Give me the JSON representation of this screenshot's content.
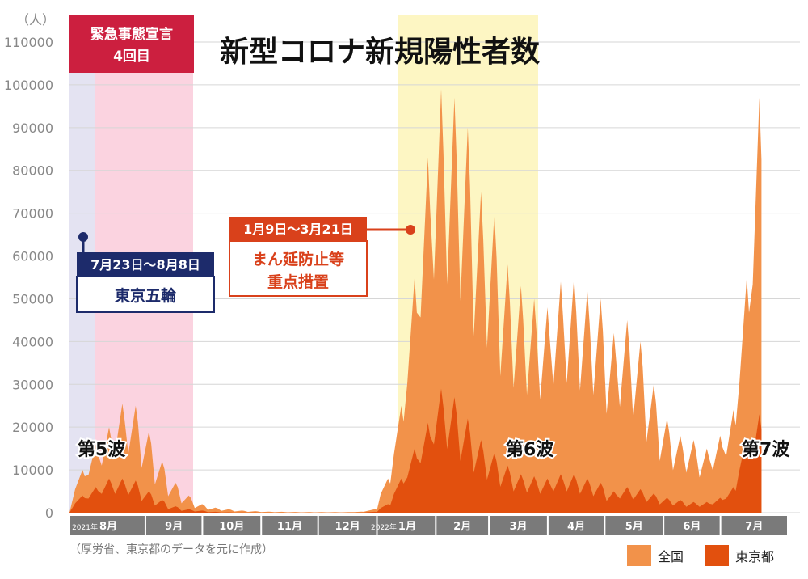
{
  "title": "新型コロナ新規陽性者数",
  "y_unit": "（人）",
  "source": "（厚労省、東京都のデータを元に作成）",
  "annotations": {
    "emergency_line1": "緊急事態宣言",
    "emergency_line2": "4回目",
    "olympics_dates": "7月23日～8月8日",
    "olympics_label": "東京五輪",
    "priority_dates": "1月9日～3月21日",
    "priority_line1": "まん延防止等",
    "priority_line2": "重点措置"
  },
  "waves": {
    "w5": "第5波",
    "w6": "第6波",
    "w7": "第7波"
  },
  "months": [
    {
      "prefix": "2021年",
      "label": "8月"
    },
    {
      "prefix": "",
      "label": "9月"
    },
    {
      "prefix": "",
      "label": "10月"
    },
    {
      "prefix": "",
      "label": "11月"
    },
    {
      "prefix": "",
      "label": "12月"
    },
    {
      "prefix": "2022年",
      "label": "1月"
    },
    {
      "prefix": "",
      "label": "2月"
    },
    {
      "prefix": "",
      "label": "3月"
    },
    {
      "prefix": "",
      "label": "4月"
    },
    {
      "prefix": "",
      "label": "5月"
    },
    {
      "prefix": "",
      "label": "6月"
    },
    {
      "prefix": "",
      "label": "7月"
    }
  ],
  "colors": {
    "national": "#f2924a",
    "tokyo": "#e2500e",
    "emergency_band": "#fbd3e0",
    "emergency_band_pre": "#e4e3f2",
    "priority_band": "#fdf6c3",
    "emergency_box": "#cc1f3f",
    "olympics_box": "#1d2b6b",
    "priority_box": "#d9411b",
    "month_bar": "#7a7a7a"
  },
  "chart_data": {
    "type": "area",
    "title": "新型コロナ新規陽性者数",
    "ylabel": "（人）",
    "ylim": [
      0,
      110000
    ],
    "yticks": [
      0,
      10000,
      20000,
      30000,
      40000,
      50000,
      60000,
      70000,
      80000,
      90000,
      100000,
      110000
    ],
    "grid": true,
    "legend_position": "bottom-right",
    "x_unit": "week",
    "series": [
      {
        "name": "全国",
        "color": "#f2924a",
        "x": [
          "2021-07-26",
          "2021-08-02",
          "2021-08-09",
          "2021-08-16",
          "2021-08-23",
          "2021-08-30",
          "2021-09-06",
          "2021-09-13",
          "2021-09-20",
          "2021-09-27",
          "2021-10-04",
          "2021-10-11",
          "2021-10-18",
          "2021-10-25",
          "2021-11-01",
          "2021-11-08",
          "2021-11-15",
          "2021-11-22",
          "2021-11-29",
          "2021-12-06",
          "2021-12-13",
          "2021-12-20",
          "2021-12-27",
          "2022-01-03",
          "2022-01-10",
          "2022-01-17",
          "2022-01-24",
          "2022-01-31",
          "2022-02-07",
          "2022-02-14",
          "2022-02-21",
          "2022-02-28",
          "2022-03-07",
          "2022-03-14",
          "2022-03-21",
          "2022-03-28",
          "2022-04-04",
          "2022-04-11",
          "2022-04-18",
          "2022-04-25",
          "2022-05-02",
          "2022-05-09",
          "2022-05-16",
          "2022-05-23",
          "2022-05-30",
          "2022-06-06",
          "2022-06-13",
          "2022-06-20",
          "2022-06-27",
          "2022-07-04",
          "2022-07-11",
          "2022-07-18"
        ],
        "values": [
          10000,
          16000,
          20000,
          25500,
          25000,
          19000,
          12000,
          7000,
          4000,
          2000,
          1200,
          800,
          500,
          350,
          250,
          200,
          170,
          150,
          130,
          130,
          150,
          250,
          800,
          8000,
          25000,
          55000,
          83000,
          99000,
          97000,
          90000,
          75000,
          70000,
          58000,
          53000,
          50000,
          48000,
          54000,
          55000,
          52000,
          50000,
          42000,
          45000,
          40000,
          30000,
          22000,
          18000,
          17000,
          15000,
          18000,
          24000,
          55000,
          97000
        ]
      },
      {
        "name": "東京都",
        "color": "#e2500e",
        "x": [
          "2021-07-26",
          "2021-08-02",
          "2021-08-09",
          "2021-08-16",
          "2021-08-23",
          "2021-08-30",
          "2021-09-06",
          "2021-09-13",
          "2021-09-20",
          "2021-09-27",
          "2021-10-04",
          "2021-10-11",
          "2021-10-18",
          "2021-10-25",
          "2021-11-01",
          "2021-11-08",
          "2021-11-15",
          "2021-11-22",
          "2021-11-29",
          "2021-12-06",
          "2021-12-13",
          "2021-12-20",
          "2021-12-27",
          "2022-01-03",
          "2022-01-10",
          "2022-01-17",
          "2022-01-24",
          "2022-01-31",
          "2022-02-07",
          "2022-02-14",
          "2022-02-21",
          "2022-02-28",
          "2022-03-07",
          "2022-03-14",
          "2022-03-21",
          "2022-03-28",
          "2022-04-04",
          "2022-04-11",
          "2022-04-18",
          "2022-04-25",
          "2022-05-02",
          "2022-05-09",
          "2022-05-16",
          "2022-05-23",
          "2022-05-30",
          "2022-06-06",
          "2022-06-13",
          "2022-06-20",
          "2022-06-27",
          "2022-07-04",
          "2022-07-11",
          "2022-07-18"
        ],
        "values": [
          4000,
          6000,
          8000,
          8000,
          7500,
          5000,
          3000,
          1500,
          800,
          500,
          200,
          100,
          50,
          30,
          25,
          20,
          20,
          20,
          20,
          20,
          25,
          50,
          200,
          2000,
          8000,
          15000,
          21000,
          29000,
          27000,
          22000,
          17000,
          14000,
          11000,
          9000,
          8500,
          8000,
          9000,
          9000,
          8000,
          7000,
          5000,
          6000,
          5500,
          4500,
          3500,
          3000,
          2500,
          2500,
          3500,
          6000,
          18000,
          23000
        ]
      }
    ]
  },
  "legend": [
    {
      "label": "全国",
      "color": "#f2924a"
    },
    {
      "label": "東京都",
      "color": "#e2500e"
    }
  ]
}
